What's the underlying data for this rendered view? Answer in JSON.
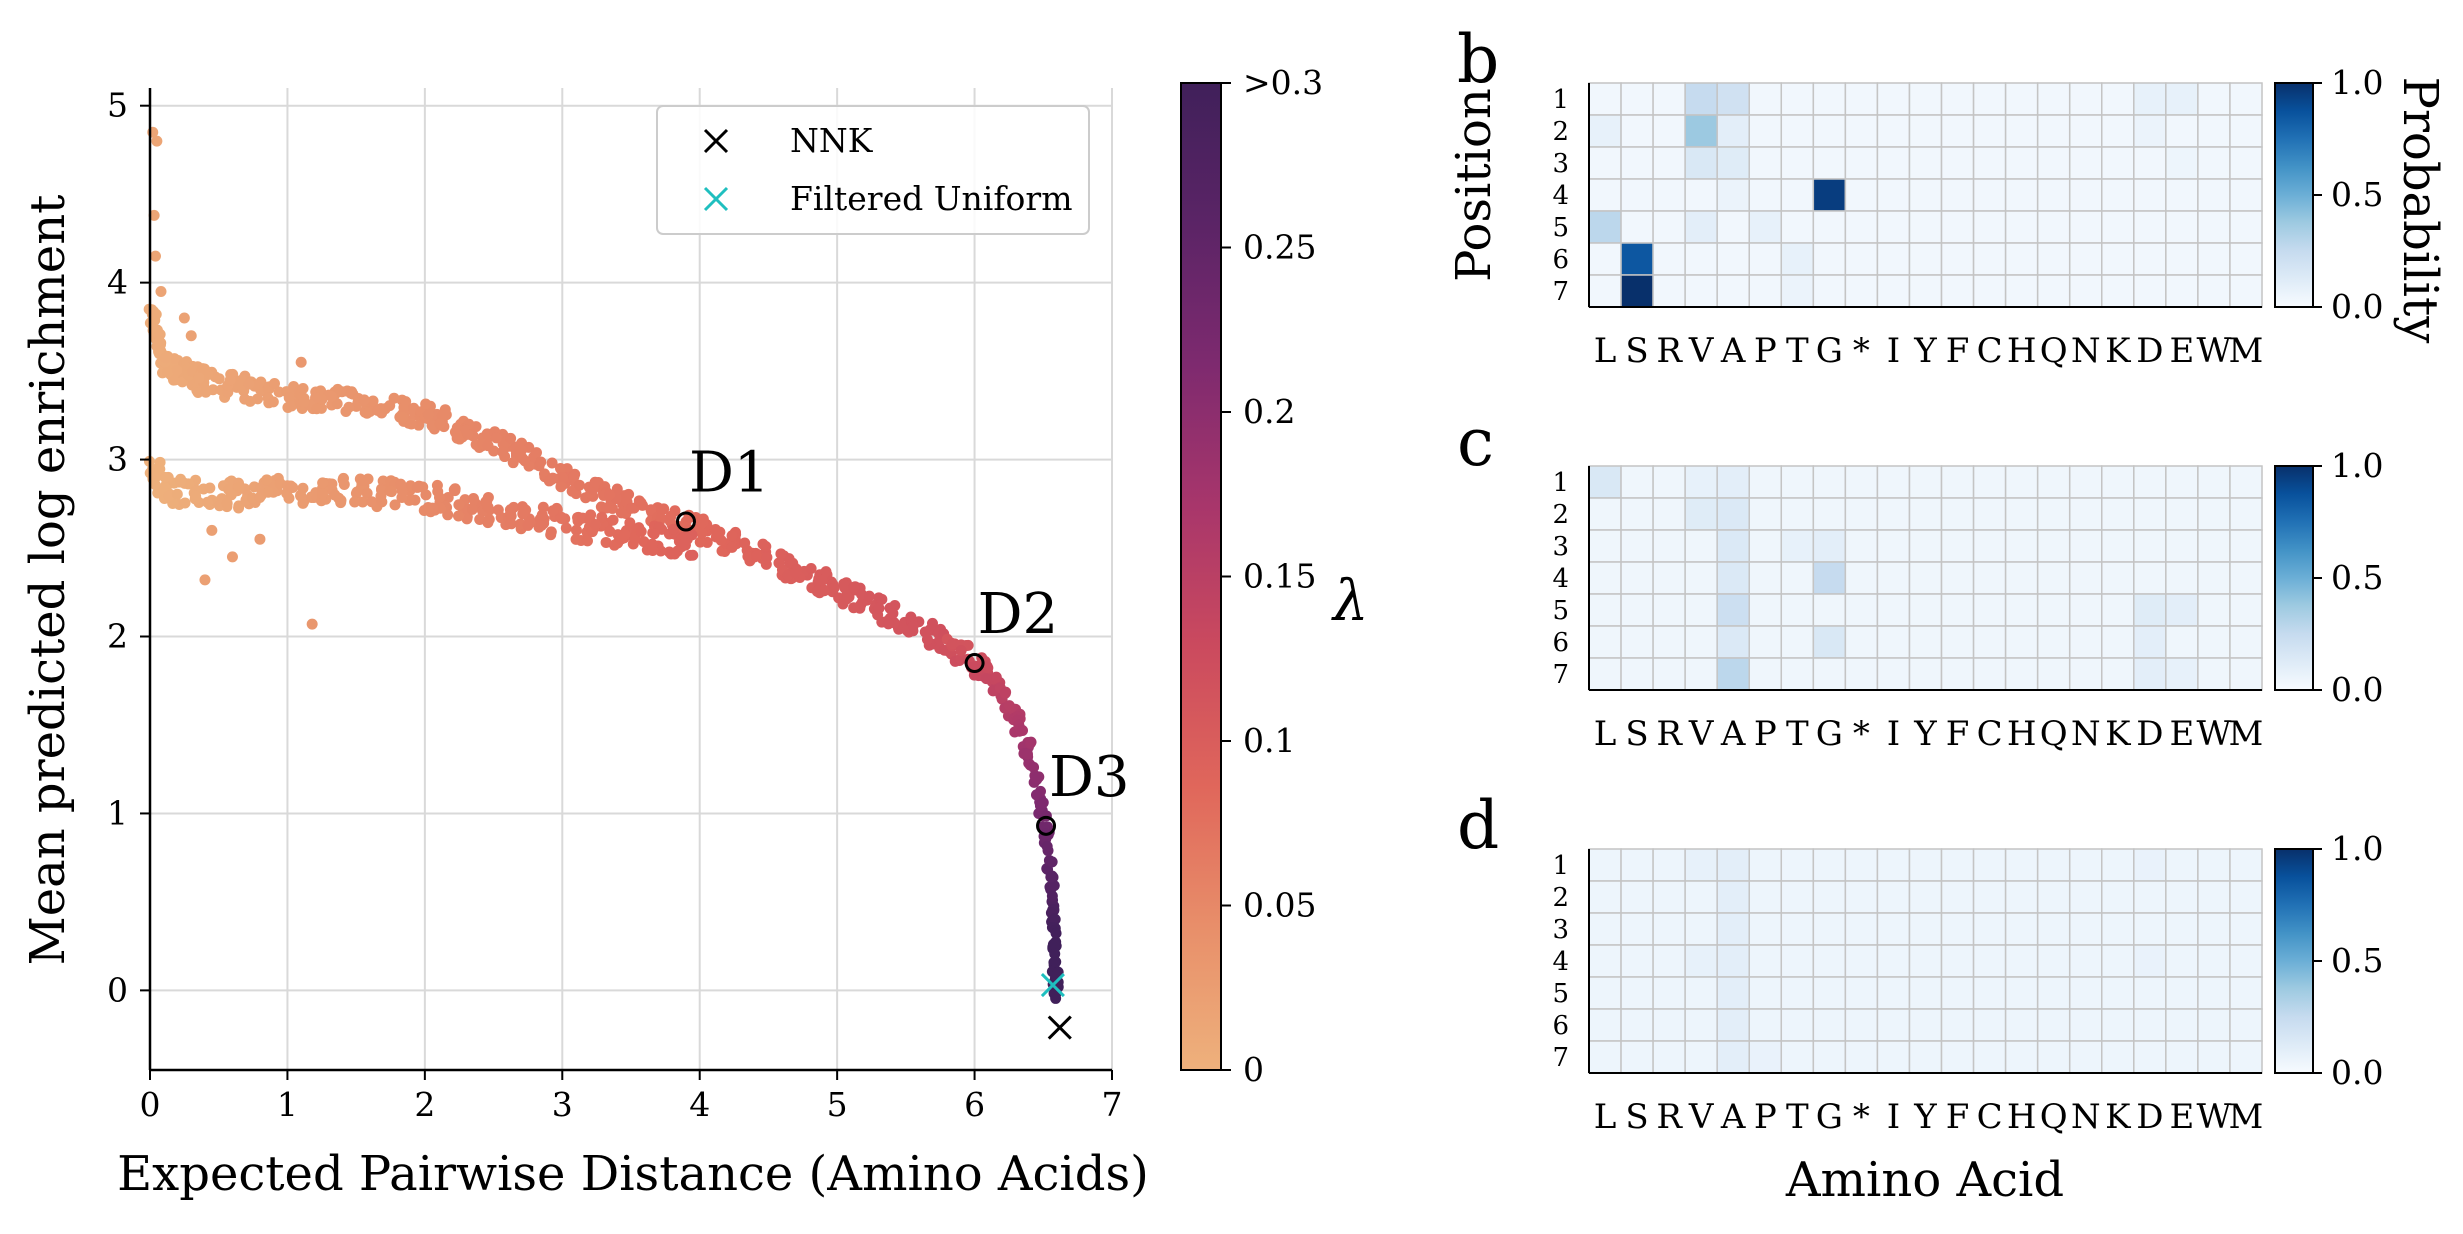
{
  "chart_data": [
    {
      "type": "scatter",
      "panel": "",
      "xlabel": "Expected Pairwise Distance (Amino Acids)",
      "ylabel": "Mean predicted log enrichment",
      "xlim": [
        0,
        7
      ],
      "ylim": [
        -0.45,
        5.1
      ],
      "xticks": [
        0,
        1,
        2,
        3,
        4,
        5,
        6,
        7
      ],
      "yticks": [
        0,
        1,
        2,
        3,
        4,
        5
      ],
      "grid": true,
      "legend": {
        "placement": "top-right",
        "entries": [
          {
            "label": "NNK",
            "marker": "x",
            "color": "#000000"
          },
          {
            "label": "Filtered Uniform",
            "marker": "x",
            "color": "#1fbfbf"
          }
        ]
      },
      "colorbar": {
        "label": "λ",
        "range": [
          0,
          0.3
        ],
        "ticks": [
          0,
          0.05,
          0.1,
          0.15,
          0.2,
          0.25,
          0.3
        ],
        "tick_labels": [
          "0",
          "0.05",
          "0.1",
          "0.15",
          "0.2",
          "0.25",
          ">0.3"
        ],
        "colormap": [
          "#eeb17c",
          "#e88f6a",
          "#e0675b",
          "#cb4a5e",
          "#a8366b",
          "#7e2a6f",
          "#5b2466",
          "#40205a"
        ]
      },
      "series": [
        {
          "marker": "dot",
          "description_points": "lambda-colored sweep",
          "upper_branch": [
            [
              0.0,
              3.85
            ],
            [
              0.05,
              3.7
            ],
            [
              0.1,
              3.55
            ],
            [
              0.2,
              3.5
            ],
            [
              0.35,
              3.45
            ],
            [
              0.5,
              3.43
            ],
            [
              0.7,
              3.4
            ],
            [
              0.9,
              3.37
            ],
            [
              1.1,
              3.35
            ],
            [
              1.3,
              3.35
            ],
            [
              1.5,
              3.33
            ],
            [
              1.7,
              3.3
            ],
            [
              1.9,
              3.27
            ],
            [
              2.1,
              3.22
            ],
            [
              2.3,
              3.17
            ],
            [
              2.5,
              3.1
            ],
            [
              2.7,
              3.03
            ],
            [
              2.9,
              2.95
            ],
            [
              3.1,
              2.88
            ],
            [
              3.3,
              2.8
            ],
            [
              3.5,
              2.74
            ],
            [
              3.7,
              2.68
            ],
            [
              3.9,
              2.63
            ],
            [
              4.1,
              2.57
            ],
            [
              4.3,
              2.51
            ],
            [
              4.5,
              2.44
            ],
            [
              4.7,
              2.37
            ],
            [
              4.9,
              2.3
            ],
            [
              5.1,
              2.23
            ],
            [
              5.3,
              2.16
            ],
            [
              5.5,
              2.08
            ],
            [
              5.7,
              2.0
            ],
            [
              5.9,
              1.91
            ],
            [
              6.05,
              1.82
            ],
            [
              6.2,
              1.68
            ],
            [
              6.32,
              1.5
            ],
            [
              6.42,
              1.27
            ],
            [
              6.5,
              1.0
            ],
            [
              6.55,
              0.7
            ],
            [
              6.57,
              0.4
            ],
            [
              6.58,
              0.15
            ],
            [
              6.6,
              0.0
            ]
          ],
          "lower_branch": [
            [
              0.0,
              3.0
            ],
            [
              0.1,
              2.85
            ],
            [
              0.2,
              2.82
            ],
            [
              0.4,
              2.8
            ],
            [
              0.6,
              2.8
            ],
            [
              0.8,
              2.81
            ],
            [
              1.0,
              2.82
            ],
            [
              1.2,
              2.82
            ],
            [
              1.4,
              2.82
            ],
            [
              1.6,
              2.81
            ],
            [
              1.8,
              2.8
            ],
            [
              2.0,
              2.79
            ],
            [
              2.2,
              2.76
            ],
            [
              2.4,
              2.73
            ],
            [
              2.6,
              2.7
            ],
            [
              2.8,
              2.67
            ],
            [
              3.0,
              2.64
            ],
            [
              3.2,
              2.61
            ],
            [
              3.4,
              2.58
            ],
            [
              3.6,
              2.56
            ],
            [
              3.8,
              2.53
            ],
            [
              4.0,
              2.5
            ]
          ],
          "outliers": [
            [
              0.02,
              4.85
            ],
            [
              0.05,
              4.8
            ],
            [
              0.03,
              4.38
            ],
            [
              0.04,
              4.15
            ],
            [
              0.08,
              3.95
            ],
            [
              0.25,
              3.8
            ],
            [
              0.3,
              3.7
            ],
            [
              1.1,
              3.55
            ],
            [
              0.4,
              2.32
            ],
            [
              0.45,
              2.6
            ],
            [
              1.18,
              2.07
            ],
            [
              0.6,
              2.45
            ],
            [
              0.8,
              2.55
            ]
          ]
        }
      ],
      "annotations": [
        {
          "label": "D1",
          "x": 3.9,
          "y": 2.65
        },
        {
          "label": "D2",
          "x": 6.0,
          "y": 1.85
        },
        {
          "label": "D3",
          "x": 6.52,
          "y": 0.93
        }
      ],
      "markers": [
        {
          "label": "NNK",
          "x": 6.62,
          "y": -0.21
        },
        {
          "label": "Filtered Uniform",
          "x": 6.57,
          "y": 0.03
        }
      ]
    },
    {
      "type": "heatmap",
      "panel": "b",
      "ylabel": "Position",
      "colorbar_label": "Probability",
      "rows": [
        "1",
        "2",
        "3",
        "4",
        "5",
        "6",
        "7"
      ],
      "cols": [
        "L",
        "S",
        "R",
        "V",
        "A",
        "P",
        "T",
        "G",
        "*",
        "I",
        "Y",
        "F",
        "C",
        "H",
        "Q",
        "N",
        "K",
        "D",
        "E",
        "W",
        "M"
      ],
      "vrange": [
        0,
        1
      ],
      "colorbar_ticks": [
        "0.0",
        "0.5",
        "1.0"
      ],
      "cells": [
        {
          "r": 1,
          "c": "V",
          "v": 0.25
        },
        {
          "r": 1,
          "c": "A",
          "v": 0.2
        },
        {
          "r": 2,
          "c": "V",
          "v": 0.38
        },
        {
          "r": 2,
          "c": "A",
          "v": 0.1
        },
        {
          "r": 2,
          "c": "L",
          "v": 0.08
        },
        {
          "r": 3,
          "c": "V",
          "v": 0.15
        },
        {
          "r": 3,
          "c": "A",
          "v": 0.12
        },
        {
          "r": 4,
          "c": "G",
          "v": 0.95
        },
        {
          "r": 4,
          "c": "A",
          "v": 0.06
        },
        {
          "r": 5,
          "c": "L",
          "v": 0.28
        },
        {
          "r": 5,
          "c": "V",
          "v": 0.1
        },
        {
          "r": 5,
          "c": "P",
          "v": 0.08
        },
        {
          "r": 6,
          "c": "S",
          "v": 0.85
        },
        {
          "r": 6,
          "c": "T",
          "v": 0.08
        },
        {
          "r": 7,
          "c": "S",
          "v": 1.0
        },
        {
          "r": 7,
          "c": "T",
          "v": 0.06
        },
        {
          "r": 1,
          "c": "D",
          "v": 0.08
        },
        {
          "r": 1,
          "c": "E",
          "v": 0.08
        },
        {
          "r": 2,
          "c": "D",
          "v": 0.06
        },
        {
          "r": 3,
          "c": "E",
          "v": 0.05
        }
      ],
      "base_value": 0.03
    },
    {
      "type": "heatmap",
      "panel": "c",
      "rows": [
        "1",
        "2",
        "3",
        "4",
        "5",
        "6",
        "7"
      ],
      "cols": [
        "L",
        "S",
        "R",
        "V",
        "A",
        "P",
        "T",
        "G",
        "*",
        "I",
        "Y",
        "F",
        "C",
        "H",
        "Q",
        "N",
        "K",
        "D",
        "E",
        "W",
        "M"
      ],
      "vrange": [
        0,
        1
      ],
      "colorbar_ticks": [
        "0.0",
        "0.5",
        "1.0"
      ],
      "cells": [
        {
          "r": 1,
          "c": "L",
          "v": 0.15
        },
        {
          "r": 1,
          "c": "A",
          "v": 0.1
        },
        {
          "r": 1,
          "c": "V",
          "v": 0.08
        },
        {
          "r": 2,
          "c": "V",
          "v": 0.12
        },
        {
          "r": 2,
          "c": "A",
          "v": 0.14
        },
        {
          "r": 3,
          "c": "A",
          "v": 0.14
        },
        {
          "r": 3,
          "c": "G",
          "v": 0.1
        },
        {
          "r": 3,
          "c": "T",
          "v": 0.08
        },
        {
          "r": 4,
          "c": "G",
          "v": 0.25
        },
        {
          "r": 4,
          "c": "A",
          "v": 0.14
        },
        {
          "r": 5,
          "c": "A",
          "v": 0.22
        },
        {
          "r": 5,
          "c": "D",
          "v": 0.12
        },
        {
          "r": 5,
          "c": "E",
          "v": 0.1
        },
        {
          "r": 6,
          "c": "G",
          "v": 0.15
        },
        {
          "r": 6,
          "c": "A",
          "v": 0.14
        },
        {
          "r": 6,
          "c": "D",
          "v": 0.1
        },
        {
          "r": 7,
          "c": "A",
          "v": 0.28
        },
        {
          "r": 7,
          "c": "D",
          "v": 0.1
        },
        {
          "r": 7,
          "c": "E",
          "v": 0.08
        }
      ],
      "base_value": 0.04
    },
    {
      "type": "heatmap",
      "panel": "d",
      "xlabel": "Amino Acid",
      "rows": [
        "1",
        "2",
        "3",
        "4",
        "5",
        "6",
        "7"
      ],
      "cols": [
        "L",
        "S",
        "R",
        "V",
        "A",
        "P",
        "T",
        "G",
        "*",
        "I",
        "Y",
        "F",
        "C",
        "H",
        "Q",
        "N",
        "K",
        "D",
        "E",
        "W",
        "M"
      ],
      "vrange": [
        0,
        1
      ],
      "colorbar_ticks": [
        "0.0",
        "0.5",
        "1.0"
      ],
      "cells": [
        {
          "r": 1,
          "c": "A",
          "v": 0.1
        },
        {
          "r": 2,
          "c": "A",
          "v": 0.1
        },
        {
          "r": 3,
          "c": "A",
          "v": 0.1
        },
        {
          "r": 4,
          "c": "A",
          "v": 0.1
        },
        {
          "r": 5,
          "c": "A",
          "v": 0.1
        },
        {
          "r": 6,
          "c": "A",
          "v": 0.1
        },
        {
          "r": 7,
          "c": "A",
          "v": 0.1
        },
        {
          "r": 1,
          "c": "V",
          "v": 0.08
        },
        {
          "r": 4,
          "c": "V",
          "v": 0.08
        },
        {
          "r": 7,
          "c": "P",
          "v": 0.07
        },
        {
          "r": 1,
          "c": "D",
          "v": 0.07
        },
        {
          "r": 4,
          "c": "D",
          "v": 0.07
        }
      ],
      "base_value": 0.05
    }
  ]
}
